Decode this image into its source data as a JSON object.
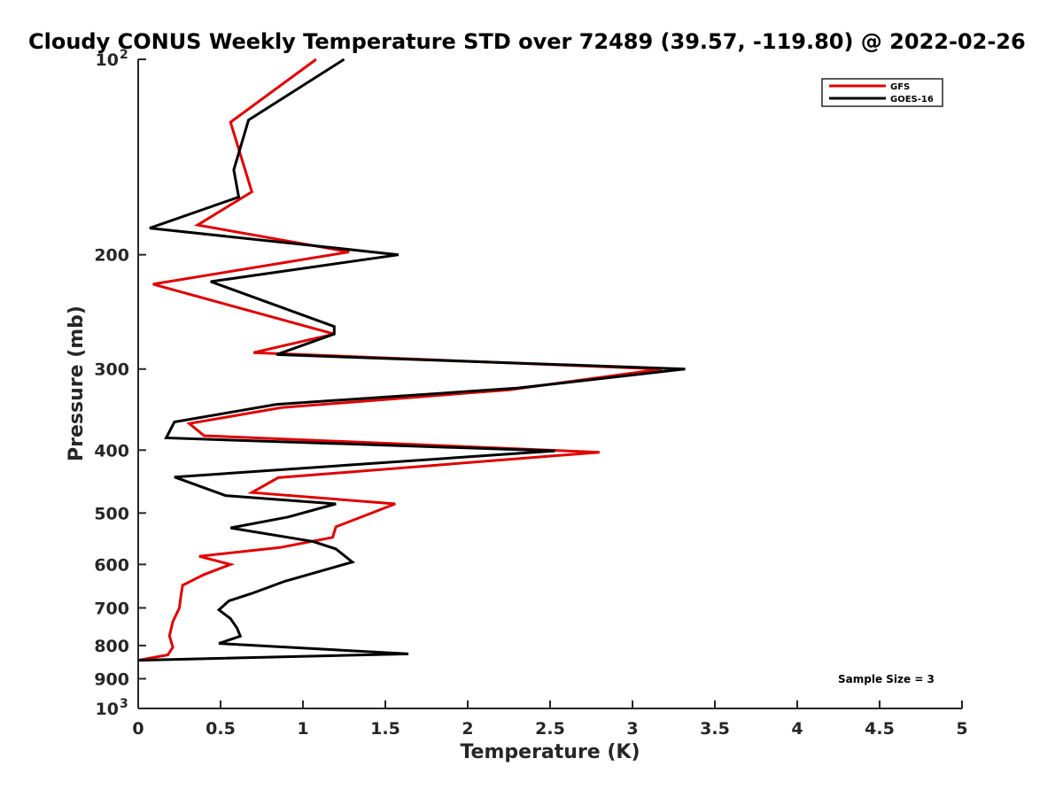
{
  "chart_data": {
    "type": "line",
    "title": "Cloudy CONUS Weekly Temperature STD over 72489 (39.57, -119.80) @ 2022-02-26",
    "xlabel": "Temperature (K)",
    "ylabel": "Pressure (mb)",
    "xlim": [
      0,
      5
    ],
    "ylim": [
      100,
      1000
    ],
    "y_scale": "log",
    "y_reversed": true,
    "x_ticks": [
      "0",
      "0.5",
      "1",
      "1.5",
      "2",
      "2.5",
      "3",
      "3.5",
      "4",
      "4.5",
      "5"
    ],
    "y_ticks": [
      {
        "value": 100,
        "label": "10",
        "sup": "2"
      },
      {
        "value": 200,
        "label": "200",
        "sup": ""
      },
      {
        "value": 300,
        "label": "300",
        "sup": ""
      },
      {
        "value": 400,
        "label": "400",
        "sup": ""
      },
      {
        "value": 500,
        "label": "500",
        "sup": ""
      },
      {
        "value": 600,
        "label": "600",
        "sup": ""
      },
      {
        "value": 700,
        "label": "700",
        "sup": ""
      },
      {
        "value": 800,
        "label": "800",
        "sup": ""
      },
      {
        "value": 900,
        "label": "900",
        "sup": ""
      },
      {
        "value": 1000,
        "label": "10",
        "sup": "3"
      }
    ],
    "legend_position": "top-right",
    "grid": false,
    "annotation": "Sample Size = 3",
    "series": [
      {
        "name": "GFS",
        "color": "#e00000",
        "points": [
          [
            1.08,
            100
          ],
          [
            0.56,
            125
          ],
          [
            0.69,
            160
          ],
          [
            0.36,
            180
          ],
          [
            1.28,
            198
          ],
          [
            0.09,
            222
          ],
          [
            1.19,
            265
          ],
          [
            0.7,
            283
          ],
          [
            3.18,
            300
          ],
          [
            2.25,
            323
          ],
          [
            0.87,
            344
          ],
          [
            0.31,
            364
          ],
          [
            0.4,
            380
          ],
          [
            2.8,
            403
          ],
          [
            0.85,
            441
          ],
          [
            0.69,
            465
          ],
          [
            1.56,
            484
          ],
          [
            1.2,
            525
          ],
          [
            1.18,
            545
          ],
          [
            0.86,
            565
          ],
          [
            0.37,
            583
          ],
          [
            0.56,
            600
          ],
          [
            0.4,
            622
          ],
          [
            0.27,
            646
          ],
          [
            0.26,
            668
          ],
          [
            0.25,
            700
          ],
          [
            0.21,
            735
          ],
          [
            0.19,
            773
          ],
          [
            0.21,
            805
          ],
          [
            0.18,
            827
          ],
          [
            0.0,
            843
          ]
        ]
      },
      {
        "name": "GOES-16",
        "color": "#000000",
        "points": [
          [
            1.25,
            100
          ],
          [
            0.67,
            124
          ],
          [
            0.58,
            148
          ],
          [
            0.61,
            163
          ],
          [
            0.07,
            182
          ],
          [
            1.58,
            200
          ],
          [
            0.44,
            220
          ],
          [
            1.19,
            258
          ],
          [
            1.19,
            265
          ],
          [
            0.84,
            285
          ],
          [
            3.32,
            300
          ],
          [
            2.3,
            321
          ],
          [
            0.84,
            340
          ],
          [
            0.22,
            362
          ],
          [
            0.17,
            383
          ],
          [
            2.53,
            401
          ],
          [
            0.22,
            440
          ],
          [
            0.53,
            470
          ],
          [
            1.2,
            484
          ],
          [
            0.91,
            507
          ],
          [
            0.56,
            527
          ],
          [
            1.06,
            553
          ],
          [
            1.2,
            568
          ],
          [
            1.3,
            595
          ],
          [
            0.89,
            637
          ],
          [
            0.69,
            665
          ],
          [
            0.55,
            683
          ],
          [
            0.49,
            705
          ],
          [
            0.56,
            727
          ],
          [
            0.6,
            752
          ],
          [
            0.62,
            774
          ],
          [
            0.49,
            794
          ],
          [
            1.64,
            824
          ],
          [
            0.0,
            843
          ]
        ]
      }
    ]
  }
}
